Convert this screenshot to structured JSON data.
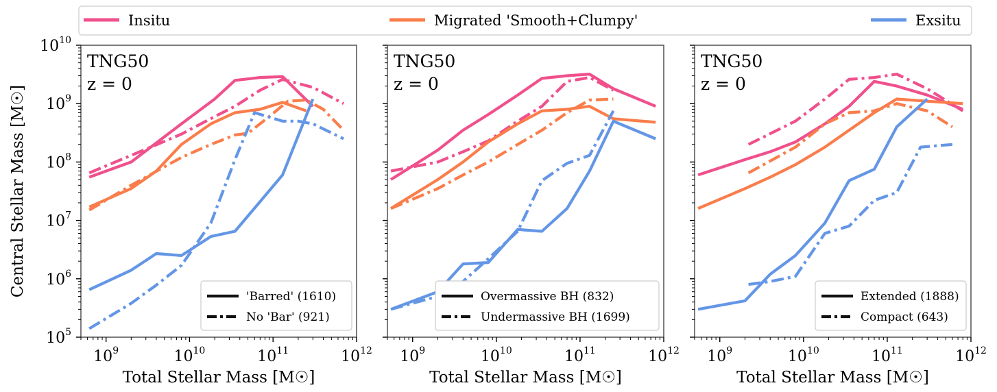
{
  "colors": {
    "Insitu": "#f0508c",
    "Migrated": "#fa7d4b",
    "Exsitu": "#6496e6"
  },
  "top_legend": [
    {
      "label": "Insitu",
      "color_key": "Insitu"
    },
    {
      "label": "Migrated 'Smooth+Clumpy'",
      "color_key": "Migrated"
    },
    {
      "label": "Exsitu",
      "color_key": "Exsitu"
    }
  ],
  "y_axis_label": "Central Stellar Mass [M☉]",
  "chart_data": [
    {
      "type": "line",
      "xlabel": "Total Stellar Mass [M☉]",
      "ylabel": "Central Stellar Mass [M☉]",
      "xscale": "log",
      "yscale": "log",
      "xlim": [
        500000000.0,
        1000000000000.0
      ],
      "ylim": [
        100000.0,
        10000000000.0
      ],
      "annotation": [
        "TNG50",
        "z = 0"
      ],
      "legend": {
        "placement": "lower-right",
        "entries": [
          {
            "label": "'Barred' (1610)",
            "style": "solid"
          },
          {
            "label": "No 'Bar' (921)",
            "style": "dashdot"
          }
        ]
      },
      "series": [
        {
          "component": "Insitu",
          "style": "solid",
          "x": [
            630000000.0,
            2000000000.0,
            8000000000.0,
            20000000000.0,
            35000000000.0,
            70000000000.0,
            130000000000.0,
            300000000000.0
          ],
          "y": [
            55000000.0,
            100000000.0,
            450000000.0,
            1200000000.0,
            2500000000.0,
            2800000000.0,
            2900000000.0,
            900000000.0
          ]
        },
        {
          "component": "Insitu",
          "style": "dashdot",
          "x": [
            630000000.0,
            2000000000.0,
            8000000000.0,
            20000000000.0,
            35000000000.0,
            70000000000.0,
            130000000000.0,
            300000000000.0,
            700000000000.0
          ],
          "y": [
            65000000.0,
            130000000.0,
            300000000.0,
            600000000.0,
            900000000.0,
            1700000000.0,
            2600000000.0,
            1900000000.0,
            1000000000.0
          ]
        },
        {
          "component": "Migrated",
          "style": "solid",
          "x": [
            630000000.0,
            2000000000.0,
            4000000000.0,
            8000000000.0,
            18000000000.0,
            35000000000.0,
            70000000000.0,
            130000000000.0,
            250000000000.0
          ],
          "y": [
            17000000.0,
            35000000.0,
            70000000.0,
            200000000.0,
            450000000.0,
            700000000.0,
            800000000.0,
            1050000000.0,
            750000000.0
          ]
        },
        {
          "component": "Migrated",
          "style": "dashdot",
          "x": [
            630000000.0,
            2000000000.0,
            8000000000.0,
            18000000000.0,
            35000000000.0,
            50000000000.0,
            90000000000.0,
            150000000000.0,
            250000000000.0,
            400000000000.0,
            700000000000.0
          ],
          "y": [
            15000000.0,
            40000000.0,
            120000000.0,
            200000000.0,
            290000000.0,
            310000000.0,
            600000000.0,
            1100000000.0,
            1150000000.0,
            800000000.0,
            350000000.0
          ]
        },
        {
          "component": "Exsitu",
          "style": "solid",
          "x": [
            630000000.0,
            2000000000.0,
            4000000000.0,
            8000000000.0,
            18000000000.0,
            35000000000.0,
            130000000000.0,
            300000000000.0
          ],
          "y": [
            650000.0,
            1400000.0,
            2700000.0,
            2500000.0,
            5300000.0,
            6500000.0,
            60000000.0,
            1200000000.0
          ]
        },
        {
          "component": "Exsitu",
          "style": "dashdot",
          "x": [
            630000000.0,
            2000000000.0,
            4000000000.0,
            8000000000.0,
            18000000000.0,
            35000000000.0,
            60000000000.0,
            130000000000.0,
            200000000000.0,
            300000000000.0,
            700000000000.0
          ],
          "y": [
            140000.0,
            380000.0,
            780000.0,
            1700000.0,
            9000000.0,
            110000000.0,
            700000000.0,
            500000000.0,
            500000000.0,
            450000000.0,
            250000000.0
          ]
        }
      ]
    },
    {
      "type": "line",
      "xlabel": "Total Stellar Mass [M☉]",
      "ylabel": "",
      "xscale": "log",
      "yscale": "log",
      "xlim": [
        500000000.0,
        1000000000000.0
      ],
      "ylim": [
        100000.0,
        10000000000.0
      ],
      "annotation": [
        "TNG50",
        "z = 0"
      ],
      "legend": {
        "placement": "lower-right",
        "entries": [
          {
            "label": "Overmassive BH (832)",
            "style": "solid"
          },
          {
            "label": "Undermassive BH (1699)",
            "style": "dashdot"
          }
        ]
      },
      "series": [
        {
          "component": "Insitu",
          "style": "solid",
          "x": [
            550000000.0,
            2000000000.0,
            4000000000.0,
            8000000000.0,
            18000000000.0,
            35000000000.0,
            70000000000.0,
            130000000000.0,
            250000000000.0,
            800000000000.0
          ],
          "y": [
            50000000.0,
            160000000.0,
            350000000.0,
            650000000.0,
            1400000000.0,
            2700000000.0,
            3000000000.0,
            3200000000.0,
            1800000000.0,
            900000000.0
          ]
        },
        {
          "component": "Insitu",
          "style": "dashdot",
          "x": [
            550000000.0,
            2000000000.0,
            4000000000.0,
            8000000000.0,
            18000000000.0,
            35000000000.0,
            70000000000.0,
            130000000000.0,
            250000000000.0
          ],
          "y": [
            70000000.0,
            100000000.0,
            150000000.0,
            230000000.0,
            500000000.0,
            900000000.0,
            2400000000.0,
            2800000000.0,
            1700000000.0
          ]
        },
        {
          "component": "Migrated",
          "style": "solid",
          "x": [
            550000000.0,
            2000000000.0,
            4000000000.0,
            8000000000.0,
            18000000000.0,
            35000000000.0,
            70000000000.0,
            130000000000.0,
            250000000000.0,
            800000000000.0
          ],
          "y": [
            16000000.0,
            50000000.0,
            100000000.0,
            220000000.0,
            450000000.0,
            750000000.0,
            800000000.0,
            900000000.0,
            550000000.0,
            480000000.0
          ]
        },
        {
          "component": "Migrated",
          "style": "dashdot",
          "x": [
            550000000.0,
            2000000000.0,
            4000000000.0,
            8000000000.0,
            18000000000.0,
            35000000000.0,
            70000000000.0,
            130000000000.0,
            250000000000.0
          ],
          "y": [
            16000000.0,
            35000000.0,
            60000000.0,
            100000000.0,
            200000000.0,
            350000000.0,
            700000000.0,
            1150000000.0,
            1200000000.0
          ]
        },
        {
          "component": "Exsitu",
          "style": "solid",
          "x": [
            550000000.0,
            2000000000.0,
            4000000000.0,
            8000000000.0,
            18000000000.0,
            35000000000.0,
            70000000000.0,
            130000000000.0,
            250000000000.0,
            800000000000.0
          ],
          "y": [
            300000.0,
            600000.0,
            1800000.0,
            1900000.0,
            7000000.0,
            6500000.0,
            16000000.0,
            70000000.0,
            500000000.0,
            250000000.0
          ]
        },
        {
          "component": "Exsitu",
          "style": "dashdot",
          "x": [
            550000000.0,
            2000000000.0,
            4000000000.0,
            8000000000.0,
            18000000000.0,
            35000000000.0,
            70000000000.0,
            130000000000.0,
            250000000000.0
          ],
          "y": [
            300000.0,
            500000.0,
            900000.0,
            2200000.0,
            6500000.0,
            48000000.0,
            95000000.0,
            130000000.0,
            750000000.0
          ]
        }
      ]
    },
    {
      "type": "line",
      "xlabel": "Total Stellar Mass [M☉]",
      "ylabel": "",
      "xscale": "log",
      "yscale": "log",
      "xlim": [
        500000000.0,
        1000000000000.0
      ],
      "ylim": [
        100000.0,
        10000000000.0
      ],
      "annotation": [
        "TNG50",
        "z = 0"
      ],
      "legend": {
        "placement": "lower-right",
        "entries": [
          {
            "label": "Extended (1888)",
            "style": "solid"
          },
          {
            "label": "Compact (643)",
            "style": "dashdot"
          }
        ]
      },
      "series": [
        {
          "component": "Insitu",
          "style": "solid",
          "x": [
            550000000.0,
            2000000000.0,
            4000000000.0,
            8000000000.0,
            18000000000.0,
            35000000000.0,
            70000000000.0,
            130000000000.0,
            300000000000.0,
            800000000000.0
          ],
          "y": [
            60000000.0,
            110000000.0,
            150000000.0,
            220000000.0,
            450000000.0,
            900000000.0,
            2400000000.0,
            2000000000.0,
            1400000000.0,
            800000000.0
          ]
        },
        {
          "component": "Insitu",
          "style": "dashdot",
          "x": [
            2200000000.0,
            8000000000.0,
            18000000000.0,
            35000000000.0,
            70000000000.0,
            130000000000.0,
            300000000000.0,
            800000000000.0
          ],
          "y": [
            200000000.0,
            500000000.0,
            1200000000.0,
            2600000000.0,
            2800000000.0,
            3200000000.0,
            1800000000.0,
            750000000.0
          ]
        },
        {
          "component": "Migrated",
          "style": "solid",
          "x": [
            550000000.0,
            2000000000.0,
            4000000000.0,
            8000000000.0,
            18000000000.0,
            35000000000.0,
            70000000000.0,
            130000000000.0,
            300000000000.0,
            800000000000.0
          ],
          "y": [
            16000000.0,
            35000000.0,
            55000000.0,
            90000000.0,
            180000000.0,
            350000000.0,
            700000000.0,
            1200000000.0,
            1100000000.0,
            1000000000.0
          ]
        },
        {
          "component": "Migrated",
          "style": "dashdot",
          "x": [
            2200000000.0,
            8000000000.0,
            18000000000.0,
            35000000000.0,
            70000000000.0,
            130000000000.0,
            300000000000.0,
            600000000000.0
          ],
          "y": [
            65000000.0,
            180000000.0,
            450000000.0,
            700000000.0,
            750000000.0,
            1000000000.0,
            750000000.0,
            400000000.0
          ]
        },
        {
          "component": "Exsitu",
          "style": "solid",
          "x": [
            550000000.0,
            2000000000.0,
            4000000000.0,
            8000000000.0,
            18000000000.0,
            35000000000.0,
            70000000000.0,
            130000000000.0,
            300000000000.0
          ],
          "y": [
            300000.0,
            420000.0,
            1200000.0,
            2500000.0,
            9000000.0,
            48000000.0,
            75000000.0,
            400000000.0,
            1200000000.0
          ]
        },
        {
          "component": "Exsitu",
          "style": "dashdot",
          "x": [
            2200000000.0,
            4000000000.0,
            8000000000.0,
            18000000000.0,
            35000000000.0,
            70000000000.0,
            130000000000.0,
            250000000000.0,
            600000000000.0
          ],
          "y": [
            800000.0,
            900000.0,
            1100000.0,
            6000000.0,
            8000000.0,
            22000000.0,
            30000000.0,
            180000000.0,
            200000000.0
          ]
        }
      ]
    }
  ]
}
